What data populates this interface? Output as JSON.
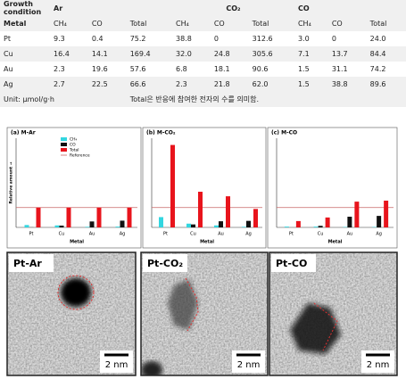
{
  "table": {
    "header": {
      "group_label": "Growth condition",
      "row_label": "Metal",
      "groups": [
        "Ar",
        "CO₂",
        "CO"
      ],
      "columns": [
        "CH₄",
        "CO",
        "Total",
        "CH₄",
        "CO",
        "Total",
        "CH₄",
        "CO",
        "Total"
      ]
    },
    "rows": [
      [
        "Pt",
        "9.3",
        "0.4",
        "75.2",
        "38.8",
        "0",
        "312.6",
        "3.0",
        "0",
        "24.0"
      ],
      [
        "Cu",
        "16.4",
        "14.1",
        "169.4",
        "32.0",
        "24.8",
        "305.6",
        "7.1",
        "13.7",
        "84.4"
      ],
      [
        "Au",
        "2.3",
        "19.6",
        "57.6",
        "6.8",
        "18.1",
        "90.6",
        "1.5",
        "31.1",
        "74.2"
      ],
      [
        "Ag",
        "2.7",
        "22.5",
        "66.6",
        "2.3",
        "21.8",
        "62.0",
        "1.5",
        "38.8",
        "89.6"
      ]
    ],
    "unit": "Unit: μmol/g·h",
    "note": "Total은 반응에 참여한 전자의 수를 의미함."
  },
  "chart_data": [
    {
      "type": "bar",
      "title": "(a) M-Ar",
      "x_label": "Metal",
      "y_label": "Relative amount →",
      "categories": [
        "Pt",
        "Cu",
        "Au",
        "Ag"
      ],
      "series": [
        {
          "name": "CH₄",
          "color": "#33d6e0",
          "values": [
            0.12,
            0.1,
            0.03,
            0.04
          ]
        },
        {
          "name": "CO",
          "color": "#111111",
          "values": [
            0.005,
            0.09,
            0.3,
            0.34
          ]
        },
        {
          "name": "Total",
          "color": "#e8141c",
          "values": [
            1,
            1,
            1,
            1
          ]
        }
      ],
      "reference": {
        "name": "Reference",
        "value": 1,
        "color": "#c86464"
      },
      "ylim": [
        0,
        4.5
      ],
      "legend": "top-left"
    },
    {
      "type": "bar",
      "title": "(b) M-CO₂",
      "x_label": "Metal",
      "categories": [
        "Pt",
        "Cu",
        "Au",
        "Ag"
      ],
      "series": [
        {
          "color": "#33d6e0",
          "values": [
            0.52,
            0.19,
            0.1,
            0.03
          ]
        },
        {
          "color": "#111111",
          "values": [
            0,
            0.15,
            0.31,
            0.33
          ]
        },
        {
          "color": "#e8141c",
          "values": [
            4.16,
            1.8,
            1.57,
            0.93
          ]
        }
      ],
      "reference": {
        "value": 1,
        "color": "#c86464"
      },
      "ylim": [
        0,
        4.5
      ]
    },
    {
      "type": "bar",
      "title": "(c) M-CO",
      "x_label": "Metal",
      "categories": [
        "Pt",
        "Cu",
        "Au",
        "Ag"
      ],
      "series": [
        {
          "color": "#33d6e0",
          "values": [
            0.04,
            0.04,
            0.02,
            0.02
          ]
        },
        {
          "color": "#111111",
          "values": [
            0,
            0.08,
            0.54,
            0.58
          ]
        },
        {
          "color": "#e8141c",
          "values": [
            0.32,
            0.5,
            1.3,
            1.35
          ]
        }
      ],
      "reference": {
        "value": 1,
        "color": "#c86464"
      },
      "ylim": [
        0,
        4.5
      ]
    }
  ],
  "images": [
    {
      "label": "Pt-Ar",
      "scale": "2 nm"
    },
    {
      "label": "Pt-CO₂",
      "scale": "2 nm"
    },
    {
      "label": "Pt-CO",
      "scale": "2 nm"
    }
  ]
}
